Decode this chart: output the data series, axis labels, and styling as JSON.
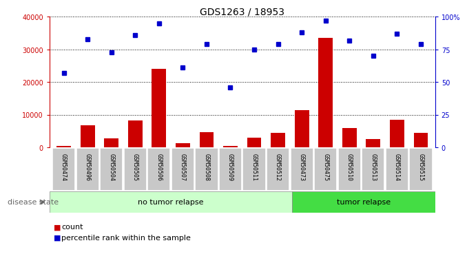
{
  "title": "GDS1263 / 18953",
  "samples": [
    "GSM50474",
    "GSM50496",
    "GSM50504",
    "GSM50505",
    "GSM50506",
    "GSM50507",
    "GSM50508",
    "GSM50509",
    "GSM50511",
    "GSM50512",
    "GSM50473",
    "GSM50475",
    "GSM50510",
    "GSM50513",
    "GSM50514",
    "GSM50515"
  ],
  "counts": [
    500,
    6800,
    2800,
    8200,
    24000,
    1200,
    4600,
    400,
    3000,
    4400,
    11500,
    33500,
    6000,
    2500,
    8500,
    4500
  ],
  "percentile": [
    57,
    83,
    73,
    86,
    95,
    61,
    79,
    46,
    75,
    79,
    88,
    97,
    82,
    70,
    87,
    79
  ],
  "no_tumor_count": 10,
  "tumor_count": 6,
  "bar_color": "#cc0000",
  "dot_color": "#0000cc",
  "background_color": "#ffffff",
  "tick_label_bg": "#c8c8c8",
  "no_relapse_bg": "#ccffcc",
  "relapse_bg": "#44dd44",
  "left_axis_color": "#cc0000",
  "right_axis_color": "#0000cc",
  "ylim_left": [
    0,
    40000
  ],
  "ylim_right": [
    0,
    100
  ],
  "yticks_left": [
    0,
    10000,
    20000,
    30000,
    40000
  ],
  "ytick_labels_left": [
    "0",
    "10000",
    "20000",
    "30000",
    "40000"
  ],
  "yticks_right": [
    0,
    25,
    50,
    75,
    100
  ],
  "ytick_labels_right": [
    "0",
    "25",
    "50",
    "75",
    "100%"
  ],
  "legend_count_label": "count",
  "legend_pct_label": "percentile rank within the sample",
  "disease_state_label": "disease state",
  "no_relapse_label": "no tumor relapse",
  "relapse_label": "tumor relapse",
  "title_fontsize": 10,
  "tick_fontsize": 7,
  "legend_fontsize": 8,
  "sample_fontsize": 6
}
